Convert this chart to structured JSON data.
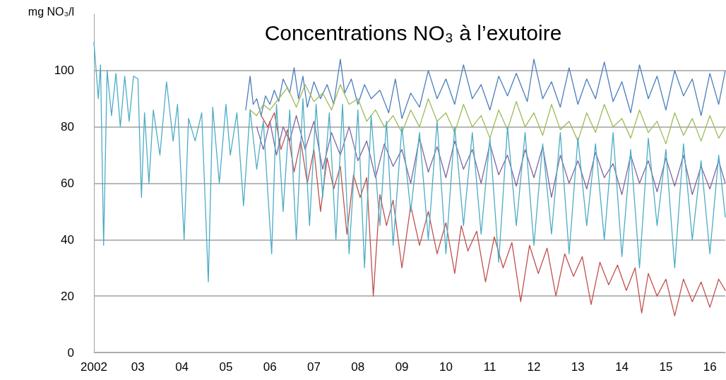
{
  "chart_data": {
    "type": "line",
    "title": "Concentrations NO₃ à l’exutoire",
    "ylabel": "mg NO₃/l",
    "xlim": [
      2002,
      2016.35
    ],
    "xticks": [
      2002,
      {
        "value": 2003,
        "label": "03"
      },
      {
        "value": 2004,
        "label": "04"
      },
      {
        "value": 2005,
        "label": "05"
      },
      {
        "value": 2006,
        "label": "06"
      },
      {
        "value": 2007,
        "label": "07"
      },
      {
        "value": 2008,
        "label": "08"
      },
      {
        "value": 2009,
        "label": "09"
      },
      {
        "value": 2010,
        "label": "10"
      },
      {
        "value": 2011,
        "label": "11"
      },
      {
        "value": 2012,
        "label": "12"
      },
      {
        "value": 2013,
        "label": "13"
      },
      {
        "value": 2014,
        "label": "14"
      },
      {
        "value": 2015,
        "label": "15"
      },
      {
        "value": 2016,
        "label": "16"
      }
    ],
    "ylim": [
      0,
      120
    ],
    "yticks": [
      0,
      20,
      40,
      60,
      80,
      100
    ],
    "grid": "y",
    "marker": "none",
    "series": [
      {
        "color": "#4a7ebb",
        "x": [
          2005.45,
          2005.55,
          2005.62,
          2005.7,
          2005.8,
          2005.9,
          2006.0,
          2006.1,
          2006.2,
          2006.3,
          2006.45,
          2006.55,
          2006.65,
          2006.75,
          2006.85,
          2007.0,
          2007.15,
          2007.3,
          2007.45,
          2007.6,
          2007.7,
          2007.85,
          2008.0,
          2008.15,
          2008.3,
          2008.5,
          2008.7,
          2008.85,
          2009.0,
          2009.2,
          2009.4,
          2009.6,
          2009.8,
          2010.0,
          2010.2,
          2010.4,
          2010.6,
          2010.8,
          2011.0,
          2011.2,
          2011.4,
          2011.6,
          2011.85,
          2012.0,
          2012.2,
          2012.4,
          2012.6,
          2012.8,
          2013.0,
          2013.2,
          2013.4,
          2013.6,
          2013.8,
          2014.0,
          2014.2,
          2014.4,
          2014.6,
          2014.8,
          2015.0,
          2015.2,
          2015.4,
          2015.6,
          2015.8,
          2016.0,
          2016.2,
          2016.35
        ],
        "values": [
          86,
          98,
          88,
          90,
          84,
          91,
          88,
          93,
          89,
          97,
          92,
          101,
          90,
          98,
          87,
          96,
          90,
          95,
          88,
          104,
          92,
          97,
          88,
          95,
          90,
          93,
          85,
          97,
          83,
          92,
          87,
          100,
          90,
          97,
          88,
          102,
          90,
          95,
          86,
          98,
          91,
          99,
          89,
          104,
          90,
          96,
          87,
          101,
          88,
          97,
          90,
          103,
          89,
          96,
          85,
          102,
          90,
          98,
          86,
          100,
          91,
          97,
          84,
          99,
          88,
          100
        ]
      },
      {
        "color": "#9bbb59",
        "x": [
          2005.55,
          2005.7,
          2005.85,
          2006.0,
          2006.2,
          2006.4,
          2006.6,
          2006.8,
          2007.0,
          2007.2,
          2007.4,
          2007.6,
          2007.8,
          2008.0,
          2008.2,
          2008.4,
          2008.6,
          2008.8,
          2009.0,
          2009.2,
          2009.4,
          2009.6,
          2009.8,
          2010.0,
          2010.2,
          2010.4,
          2010.6,
          2010.8,
          2011.0,
          2011.2,
          2011.4,
          2011.6,
          2011.8,
          2012.0,
          2012.2,
          2012.4,
          2012.6,
          2012.8,
          2013.0,
          2013.2,
          2013.4,
          2013.6,
          2013.8,
          2014.0,
          2014.2,
          2014.4,
          2014.6,
          2014.8,
          2015.0,
          2015.2,
          2015.4,
          2015.6,
          2015.8,
          2016.0,
          2016.2,
          2016.35
        ],
        "values": [
          86,
          84,
          88,
          86,
          90,
          94,
          87,
          95,
          89,
          92,
          86,
          95,
          88,
          90,
          82,
          86,
          80,
          84,
          78,
          86,
          80,
          90,
          82,
          85,
          78,
          88,
          80,
          84,
          76,
          86,
          79,
          89,
          80,
          85,
          77,
          88,
          79,
          82,
          75,
          85,
          78,
          88,
          80,
          83,
          76,
          86,
          78,
          82,
          74,
          85,
          77,
          83,
          75,
          84,
          76,
          80
        ]
      },
      {
        "color": "#8064a2",
        "x": [
          2005.7,
          2005.85,
          2006.0,
          2006.15,
          2006.3,
          2006.45,
          2006.6,
          2006.8,
          2007.0,
          2007.2,
          2007.4,
          2007.6,
          2007.8,
          2008.0,
          2008.2,
          2008.4,
          2008.6,
          2008.8,
          2009.0,
          2009.2,
          2009.4,
          2009.6,
          2009.8,
          2010.0,
          2010.2,
          2010.4,
          2010.6,
          2010.8,
          2011.0,
          2011.2,
          2011.4,
          2011.6,
          2011.8,
          2012.0,
          2012.2,
          2012.4,
          2012.6,
          2012.8,
          2013.0,
          2013.2,
          2013.4,
          2013.6,
          2013.8,
          2014.0,
          2014.2,
          2014.4,
          2014.6,
          2014.8,
          2015.0,
          2015.2,
          2015.4,
          2015.6,
          2015.8,
          2016.0,
          2016.2,
          2016.35
        ],
        "values": [
          80,
          72,
          82,
          70,
          80,
          75,
          84,
          72,
          82,
          65,
          78,
          70,
          80,
          68,
          75,
          62,
          74,
          66,
          72,
          60,
          76,
          64,
          73,
          62,
          75,
          65,
          72,
          60,
          74,
          63,
          70,
          59,
          72,
          62,
          73,
          55,
          70,
          60,
          68,
          58,
          71,
          62,
          67,
          56,
          70,
          60,
          68,
          57,
          69,
          59,
          70,
          56,
          66,
          58,
          68,
          60
        ]
      },
      {
        "color": "#c0504d",
        "x": [
          2005.8,
          2005.95,
          2006.1,
          2006.25,
          2006.4,
          2006.55,
          2006.7,
          2006.85,
          2007.0,
          2007.15,
          2007.3,
          2007.45,
          2007.6,
          2007.75,
          2007.9,
          2008.05,
          2008.2,
          2008.35,
          2008.5,
          2008.65,
          2008.8,
          2009.0,
          2009.2,
          2009.4,
          2009.6,
          2009.8,
          2010.0,
          2010.2,
          2010.35,
          2010.5,
          2010.7,
          2010.9,
          2011.1,
          2011.3,
          2011.5,
          2011.7,
          2011.9,
          2012.1,
          2012.3,
          2012.5,
          2012.7,
          2012.9,
          2013.1,
          2013.3,
          2013.5,
          2013.7,
          2013.9,
          2014.1,
          2014.3,
          2014.45,
          2014.6,
          2014.8,
          2015.0,
          2015.2,
          2015.4,
          2015.6,
          2015.8,
          2016.0,
          2016.2,
          2016.35
        ],
        "values": [
          84,
          80,
          85,
          72,
          79,
          64,
          75,
          60,
          72,
          50,
          69,
          58,
          66,
          42,
          63,
          55,
          62,
          20,
          56,
          45,
          54,
          30,
          52,
          38,
          50,
          35,
          46,
          28,
          45,
          36,
          43,
          25,
          41,
          30,
          39,
          18,
          38,
          28,
          37,
          20,
          35,
          27,
          34,
          17,
          32,
          24,
          31,
          22,
          30,
          14,
          28,
          20,
          26,
          13,
          26,
          18,
          25,
          16,
          26,
          22
        ]
      },
      {
        "color": "#4bacc6",
        "x": [
          2002.0,
          2002.05,
          2002.1,
          2002.15,
          2002.22,
          2002.3,
          2002.4,
          2002.5,
          2002.6,
          2002.7,
          2002.8,
          2002.9,
          2003.0,
          2003.08,
          2003.15,
          2003.25,
          2003.35,
          2003.5,
          2003.65,
          2003.8,
          2003.9,
          2004.05,
          2004.15,
          2004.3,
          2004.45,
          2004.6,
          2004.7,
          2004.85,
          2005.0,
          2005.1,
          2005.25,
          2005.4,
          2005.55,
          2005.7,
          2005.85,
          2006.04,
          2006.15,
          2006.3,
          2006.45,
          2006.6,
          2006.75,
          2006.9,
          2007.05,
          2007.2,
          2007.35,
          2007.5,
          2007.65,
          2007.8,
          2008.0,
          2008.15,
          2008.3,
          2008.5,
          2008.65,
          2008.8,
          2009.0,
          2009.2,
          2009.4,
          2009.6,
          2009.8,
          2010.0,
          2010.2,
          2010.4,
          2010.6,
          2010.8,
          2011.0,
          2011.2,
          2011.4,
          2011.6,
          2011.8,
          2012.0,
          2012.2,
          2012.4,
          2012.6,
          2012.8,
          2013.0,
          2013.2,
          2013.4,
          2013.6,
          2013.8,
          2014.0,
          2014.2,
          2014.4,
          2014.6,
          2014.8,
          2015.0,
          2015.2,
          2015.4,
          2015.6,
          2015.8,
          2016.0,
          2016.2,
          2016.35
        ],
        "values": [
          110,
          100,
          90,
          102,
          38,
          100,
          84,
          99,
          80,
          98,
          82,
          98,
          97,
          55,
          85,
          60,
          86,
          70,
          96,
          75,
          88,
          40,
          83,
          75,
          85,
          25,
          87,
          60,
          88,
          70,
          85,
          52,
          86,
          65,
          82,
          35,
          88,
          50,
          86,
          40,
          90,
          45,
          88,
          55,
          85,
          40,
          88,
          35,
          86,
          30,
          84,
          45,
          82,
          38,
          80,
          50,
          78,
          40,
          82,
          35,
          80,
          45,
          78,
          42,
          76,
          32,
          80,
          45,
          78,
          38,
          74,
          42,
          78,
          35,
          76,
          45,
          74,
          40,
          78,
          34,
          72,
          30,
          76,
          45,
          72,
          30,
          74,
          40,
          68,
          35,
          70,
          48
        ]
      }
    ]
  }
}
